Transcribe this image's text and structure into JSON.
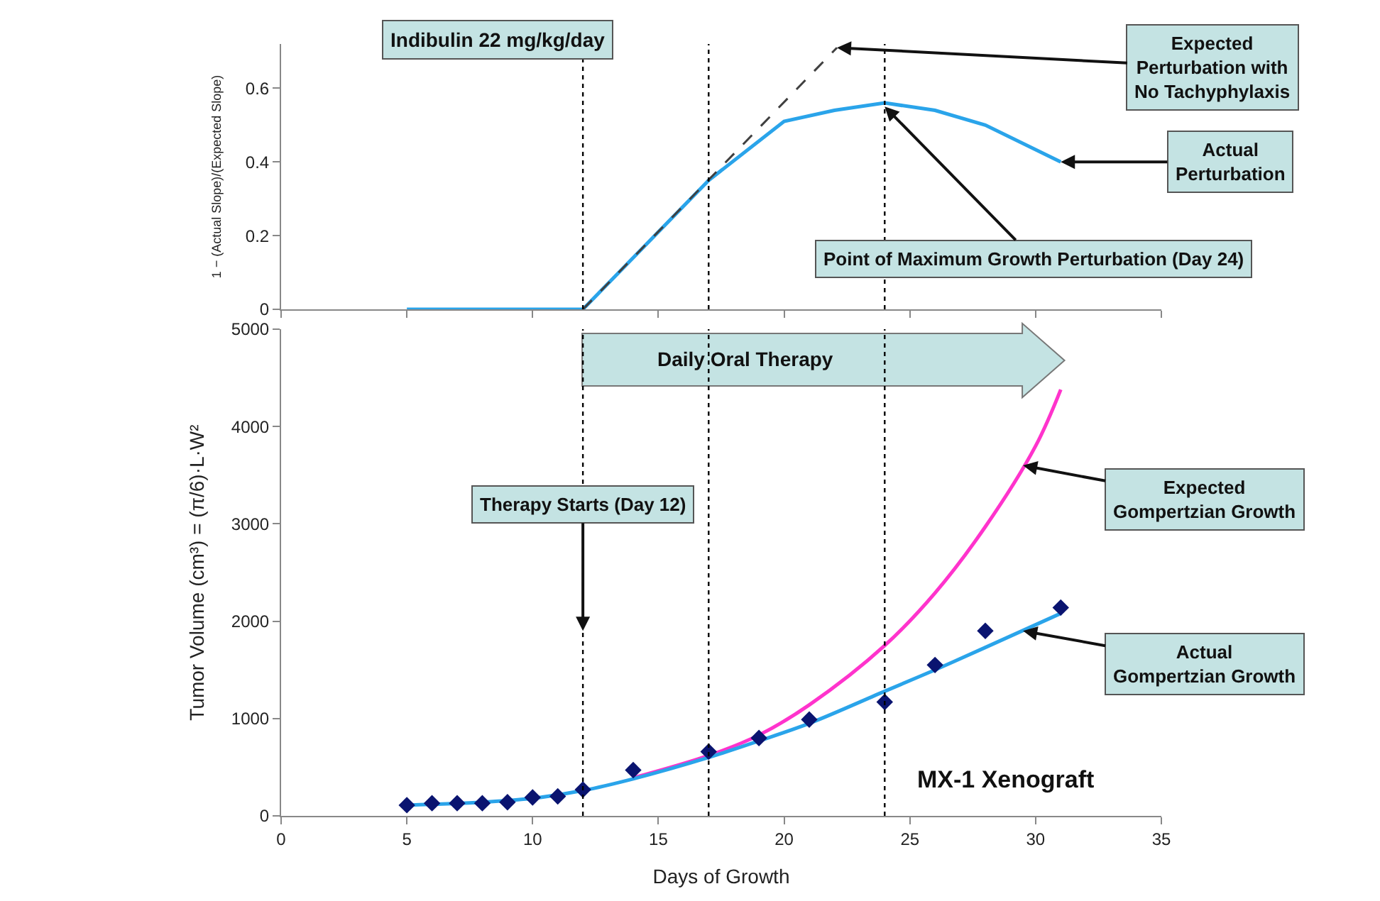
{
  "chart_data": [
    {
      "type": "line",
      "ylabel": "1 − (Actual Slope)/(Expected Slope)",
      "xlim": [
        0,
        35
      ],
      "xticks": [
        0,
        5,
        10,
        15,
        20,
        25,
        30,
        35
      ],
      "ylim": [
        0,
        0.72
      ],
      "yticks": [
        0,
        0.2,
        0.4,
        0.6
      ],
      "tick_labels": "y",
      "marker": "none",
      "series": [
        {
          "color": "#2aa4ea",
          "x": [
            5,
            12,
            14,
            17,
            20,
            22,
            24,
            26,
            28,
            31
          ],
          "values": [
            0,
            0,
            0.14,
            0.35,
            0.51,
            0.54,
            0.56,
            0.54,
            0.5,
            0.4
          ]
        },
        {
          "color": "#404040",
          "line_style": "dashed",
          "x": [
            12,
            22.1
          ],
          "values": [
            0,
            0.71
          ]
        }
      ],
      "ref_lines": [
        {
          "axis": "x",
          "value": 12,
          "color": "#000000",
          "line_style": "dotted"
        },
        {
          "axis": "x",
          "value": 17,
          "color": "#000000",
          "line_style": "dotted"
        },
        {
          "axis": "x",
          "value": 24,
          "color": "#000000",
          "line_style": "dotted"
        }
      ],
      "annotations": [
        "Indibulin 22 mg/kg/day",
        {
          "text": "Expected\nPerturbation with\nNo Tachyphylaxis",
          "x": 22.1,
          "y": 0.71
        },
        {
          "text": "Actual\nPerturbation",
          "x": 31,
          "y": 0.4
        },
        {
          "text": "Point of Maximum Growth Perturbation (Day 24)",
          "x": 24,
          "y": 0.55
        }
      ]
    },
    {
      "type": "line",
      "xlabel": "Days of Growth",
      "ylabel": "Tumor Volume (cm³) = (π/6)·L·W²",
      "xlim": [
        0,
        35
      ],
      "xticks": [
        0,
        5,
        10,
        15,
        20,
        25,
        30,
        35
      ],
      "ylim": [
        0,
        5000
      ],
      "yticks": [
        0,
        1000,
        2000,
        3000,
        4000,
        5000
      ],
      "series": [
        {
          "color": "#ff33cc",
          "x": [
            14,
            17,
            19,
            21,
            24,
            26,
            28,
            30,
            31
          ],
          "values": [
            390,
            620,
            830,
            1140,
            1750,
            2290,
            2970,
            3800,
            4380
          ]
        },
        {
          "color": "#2aa4ea",
          "x": [
            5,
            8,
            10,
            12,
            14,
            17,
            19,
            21,
            24,
            26,
            28,
            31
          ],
          "values": [
            110,
            140,
            180,
            260,
            380,
            600,
            770,
            950,
            1280,
            1500,
            1730,
            2080
          ]
        },
        {
          "type": "scatter",
          "color": "#0a1470",
          "marker": "diamond",
          "x": [
            5,
            6,
            7,
            8,
            9,
            10,
            11,
            12,
            14,
            17,
            19,
            21,
            24,
            26,
            28,
            31
          ],
          "values": [
            110,
            130,
            130,
            130,
            140,
            190,
            200,
            270,
            470,
            660,
            800,
            990,
            1170,
            1550,
            1900,
            2140
          ]
        }
      ],
      "ref_lines": [
        {
          "axis": "x",
          "value": 12,
          "color": "#000000",
          "line_style": "dotted"
        },
        {
          "axis": "x",
          "value": 17,
          "color": "#000000",
          "line_style": "dotted"
        },
        {
          "axis": "x",
          "value": 24,
          "color": "#000000",
          "line_style": "dotted"
        }
      ],
      "annotations": [
        "Daily Oral Therapy",
        {
          "text": "Therapy Starts (Day 12)",
          "x": 12,
          "y": 1900
        },
        {
          "text": "Expected\nGompertzian Growth",
          "x": 29.5,
          "y": 3600
        },
        {
          "text": "Actual\nGompertzian Growth",
          "x": 29.5,
          "y": 1900
        },
        "MX-1 Xenograft"
      ]
    }
  ]
}
